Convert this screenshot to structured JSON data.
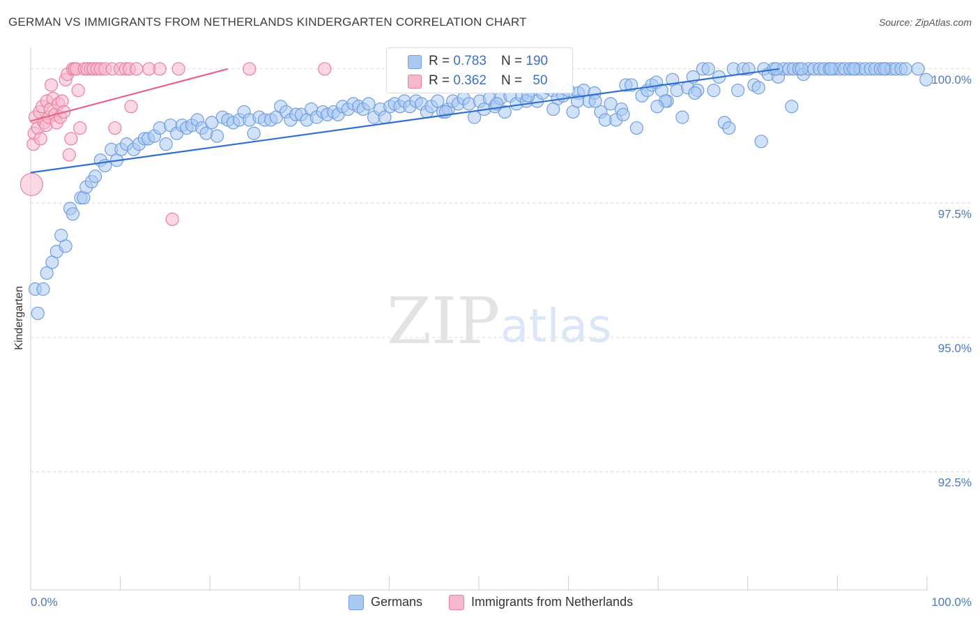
{
  "title": "GERMAN VS IMMIGRANTS FROM NETHERLANDS KINDERGARTEN CORRELATION CHART",
  "source": "Source: ZipAtlas.com",
  "watermark": {
    "zip": "ZIP",
    "atlas": "atlas"
  },
  "chart_data": {
    "type": "scatter",
    "title": "GERMAN VS IMMIGRANTS FROM NETHERLANDS KINDERGARTEN CORRELATION CHART",
    "xlabel": "",
    "ylabel": "Kindergarten",
    "xlim": [
      0,
      100
    ],
    "ylim": [
      90.3,
      100.4
    ],
    "x_tick_labels": {
      "left": "0.0%",
      "right": "100.0%"
    },
    "y_ticks": [
      {
        "value": 100.0,
        "label": "100.0%"
      },
      {
        "value": 97.5,
        "label": "97.5%"
      },
      {
        "value": 95.0,
        "label": "95.0%"
      },
      {
        "value": 92.5,
        "label": "92.5%"
      }
    ],
    "legend": {
      "stats": [
        {
          "r_label": "R = ",
          "r_value": "0.783",
          "n_label": "N = ",
          "n_value": "190"
        },
        {
          "r_label": "R = ",
          "r_value": "0.362",
          "n_label": "N = ",
          "n_value": "50"
        }
      ]
    },
    "series": [
      {
        "name": "Germans",
        "color": "#a9c8f2",
        "stroke": "#6f9ee0",
        "line_color": "#2e6fd0",
        "trend": {
          "x0": 0,
          "y0": 98.07,
          "x1": 83.5,
          "y1": 100.0
        },
        "points": [
          [
            0.5,
            95.9
          ],
          [
            0.8,
            95.45
          ],
          [
            1.4,
            95.9
          ],
          [
            1.8,
            96.2
          ],
          [
            2.4,
            96.4
          ],
          [
            2.9,
            96.6
          ],
          [
            3.4,
            96.9
          ],
          [
            3.9,
            96.7
          ],
          [
            4.4,
            97.4
          ],
          [
            4.7,
            97.3
          ],
          [
            5.6,
            97.6
          ],
          [
            5.9,
            97.6
          ],
          [
            6.2,
            97.8
          ],
          [
            6.8,
            97.9
          ],
          [
            7.2,
            98.0
          ],
          [
            7.8,
            98.3
          ],
          [
            8.3,
            98.2
          ],
          [
            9.0,
            98.5
          ],
          [
            9.6,
            98.3
          ],
          [
            10.1,
            98.5
          ],
          [
            10.7,
            98.6
          ],
          [
            11.5,
            98.5
          ],
          [
            12.1,
            98.6
          ],
          [
            12.7,
            98.7
          ],
          [
            13.1,
            98.7
          ],
          [
            13.8,
            98.75
          ],
          [
            14.4,
            98.9
          ],
          [
            15.1,
            98.6
          ],
          [
            15.6,
            98.95
          ],
          [
            16.3,
            98.8
          ],
          [
            16.9,
            98.95
          ],
          [
            17.4,
            98.9
          ],
          [
            18.0,
            98.95
          ],
          [
            18.6,
            99.05
          ],
          [
            19.1,
            98.9
          ],
          [
            19.6,
            98.8
          ],
          [
            20.2,
            99.0
          ],
          [
            20.8,
            98.75
          ],
          [
            21.4,
            99.1
          ],
          [
            22.0,
            99.05
          ],
          [
            22.6,
            99.0
          ],
          [
            23.3,
            99.05
          ],
          [
            23.8,
            99.2
          ],
          [
            24.4,
            99.05
          ],
          [
            24.9,
            98.8
          ],
          [
            25.5,
            99.1
          ],
          [
            26.1,
            99.05
          ],
          [
            26.8,
            99.05
          ],
          [
            27.4,
            99.1
          ],
          [
            27.9,
            99.3
          ],
          [
            28.5,
            99.2
          ],
          [
            29.0,
            99.05
          ],
          [
            29.6,
            99.15
          ],
          [
            30.2,
            99.15
          ],
          [
            30.8,
            99.05
          ],
          [
            31.3,
            99.25
          ],
          [
            31.9,
            99.1
          ],
          [
            32.6,
            99.2
          ],
          [
            33.1,
            99.15
          ],
          [
            33.8,
            99.2
          ],
          [
            34.3,
            99.15
          ],
          [
            34.8,
            99.3
          ],
          [
            35.4,
            99.25
          ],
          [
            36.0,
            99.35
          ],
          [
            36.6,
            99.3
          ],
          [
            37.1,
            99.25
          ],
          [
            37.7,
            99.35
          ],
          [
            38.3,
            99.1
          ],
          [
            39.0,
            99.25
          ],
          [
            39.5,
            99.1
          ],
          [
            40.1,
            99.3
          ],
          [
            40.6,
            99.35
          ],
          [
            41.2,
            99.3
          ],
          [
            41.7,
            99.4
          ],
          [
            42.3,
            99.3
          ],
          [
            43.0,
            99.4
          ],
          [
            43.6,
            99.35
          ],
          [
            44.2,
            99.2
          ],
          [
            44.7,
            99.3
          ],
          [
            45.4,
            99.4
          ],
          [
            46.0,
            99.2
          ],
          [
            46.6,
            99.25
          ],
          [
            47.1,
            99.4
          ],
          [
            47.7,
            99.35
          ],
          [
            48.3,
            99.45
          ],
          [
            48.9,
            99.35
          ],
          [
            49.5,
            99.1
          ],
          [
            50.1,
            99.4
          ],
          [
            50.6,
            99.25
          ],
          [
            51.2,
            99.45
          ],
          [
            51.8,
            99.3
          ],
          [
            52.4,
            99.45
          ],
          [
            52.9,
            99.2
          ],
          [
            53.5,
            99.5
          ],
          [
            54.2,
            99.35
          ],
          [
            54.8,
            99.5
          ],
          [
            55.3,
            99.4
          ],
          [
            55.9,
            99.6
          ],
          [
            56.5,
            99.4
          ],
          [
            57.1,
            99.55
          ],
          [
            57.6,
            99.65
          ],
          [
            58.2,
            99.6
          ],
          [
            58.8,
            99.45
          ],
          [
            59.4,
            99.5
          ],
          [
            60.0,
            99.6
          ],
          [
            60.5,
            99.2
          ],
          [
            61.1,
            99.55
          ],
          [
            61.7,
            99.6
          ],
          [
            62.3,
            99.4
          ],
          [
            62.9,
            99.55
          ],
          [
            63.6,
            99.2
          ],
          [
            64.1,
            99.05
          ],
          [
            64.7,
            99.35
          ],
          [
            65.3,
            99.05
          ],
          [
            65.9,
            99.25
          ],
          [
            66.4,
            99.7
          ],
          [
            67.0,
            99.7
          ],
          [
            67.6,
            98.9
          ],
          [
            68.2,
            99.5
          ],
          [
            68.8,
            99.6
          ],
          [
            69.3,
            99.7
          ],
          [
            69.8,
            99.75
          ],
          [
            70.4,
            99.6
          ],
          [
            71.0,
            99.4
          ],
          [
            71.6,
            99.8
          ],
          [
            72.1,
            99.6
          ],
          [
            72.7,
            99.1
          ],
          [
            73.3,
            99.65
          ],
          [
            73.9,
            99.85
          ],
          [
            74.4,
            99.6
          ],
          [
            75.0,
            100.0
          ],
          [
            75.6,
            100.0
          ],
          [
            76.2,
            99.6
          ],
          [
            76.8,
            99.85
          ],
          [
            77.4,
            99.0
          ],
          [
            77.9,
            98.9
          ],
          [
            78.4,
            100.0
          ],
          [
            78.9,
            99.6
          ],
          [
            79.5,
            100.0
          ],
          [
            80.1,
            100.0
          ],
          [
            80.7,
            99.7
          ],
          [
            81.2,
            99.65
          ],
          [
            81.8,
            100.0
          ],
          [
            82.3,
            99.9
          ],
          [
            82.9,
            100.0
          ],
          [
            83.4,
            99.85
          ],
          [
            84.0,
            100.0
          ],
          [
            84.6,
            100.0
          ],
          [
            85.1,
            100.0
          ],
          [
            85.7,
            100.0
          ],
          [
            86.2,
            99.9
          ],
          [
            86.8,
            100.0
          ],
          [
            87.4,
            100.0
          ],
          [
            88.0,
            100.0
          ],
          [
            88.5,
            100.0
          ],
          [
            89.1,
            100.0
          ],
          [
            89.7,
            100.0
          ],
          [
            90.3,
            100.0
          ],
          [
            90.8,
            100.0
          ],
          [
            91.4,
            100.0
          ],
          [
            92.0,
            100.0
          ],
          [
            92.5,
            100.0
          ],
          [
            93.1,
            100.0
          ],
          [
            93.7,
            100.0
          ],
          [
            94.2,
            100.0
          ],
          [
            94.8,
            100.0
          ],
          [
            95.4,
            100.0
          ],
          [
            96.0,
            100.0
          ],
          [
            96.5,
            100.0
          ],
          [
            97.1,
            100.0
          ],
          [
            99.9,
            99.8
          ],
          [
            58.3,
            99.25
          ],
          [
            61.0,
            99.4
          ],
          [
            55.5,
            99.5
          ],
          [
            70.8,
            99.4
          ],
          [
            63.0,
            99.4
          ],
          [
            66.1,
            99.15
          ],
          [
            69.9,
            99.3
          ],
          [
            74.1,
            99.55
          ],
          [
            84.9,
            99.3
          ],
          [
            81.5,
            98.65
          ],
          [
            86.0,
            100.0
          ],
          [
            91.8,
            100.0
          ],
          [
            99.0,
            100.0
          ],
          [
            97.6,
            100.0
          ],
          [
            95.2,
            100.0
          ],
          [
            89.3,
            100.0
          ],
          [
            83.2,
            100.0
          ],
          [
            52.0,
            99.35
          ],
          [
            46.3,
            99.2
          ]
        ]
      },
      {
        "name": "Immigrants from Netherlands",
        "color": "#f8b8cc",
        "stroke": "#ea7fa0",
        "line_color": "#e5648d",
        "trend": {
          "x0": 0,
          "y0": 99.03,
          "x1": 22.0,
          "y1": 100.0
        },
        "points": [
          [
            0.1,
            97.85
          ],
          [
            0.3,
            98.6
          ],
          [
            0.4,
            98.8
          ],
          [
            0.5,
            99.1
          ],
          [
            0.8,
            98.9
          ],
          [
            1.0,
            99.2
          ],
          [
            1.1,
            98.7
          ],
          [
            1.3,
            99.3
          ],
          [
            1.5,
            99.0
          ],
          [
            1.7,
            98.95
          ],
          [
            1.8,
            99.4
          ],
          [
            2.0,
            99.1
          ],
          [
            2.2,
            99.25
          ],
          [
            2.3,
            99.7
          ],
          [
            2.5,
            99.45
          ],
          [
            2.7,
            99.15
          ],
          [
            2.9,
            99.0
          ],
          [
            3.1,
            99.35
          ],
          [
            3.3,
            99.1
          ],
          [
            3.5,
            99.4
          ],
          [
            3.7,
            99.2
          ],
          [
            3.9,
            99.8
          ],
          [
            4.1,
            99.9
          ],
          [
            4.3,
            98.4
          ],
          [
            4.5,
            98.7
          ],
          [
            4.7,
            100.0
          ],
          [
            4.9,
            100.0
          ],
          [
            5.1,
            100.0
          ],
          [
            5.3,
            99.6
          ],
          [
            5.5,
            98.9
          ],
          [
            6.0,
            100.0
          ],
          [
            6.3,
            100.0
          ],
          [
            6.7,
            100.0
          ],
          [
            7.0,
            100.0
          ],
          [
            7.4,
            100.0
          ],
          [
            7.8,
            100.0
          ],
          [
            8.3,
            100.0
          ],
          [
            9.1,
            100.0
          ],
          [
            9.4,
            98.9
          ],
          [
            10.0,
            100.0
          ],
          [
            10.6,
            100.0
          ],
          [
            11.0,
            100.0
          ],
          [
            11.2,
            99.3
          ],
          [
            11.8,
            100.0
          ],
          [
            13.2,
            100.0
          ],
          [
            14.4,
            100.0
          ],
          [
            15.8,
            97.2
          ],
          [
            16.5,
            100.0
          ],
          [
            24.4,
            100.0
          ],
          [
            32.8,
            100.0
          ]
        ]
      }
    ]
  }
}
